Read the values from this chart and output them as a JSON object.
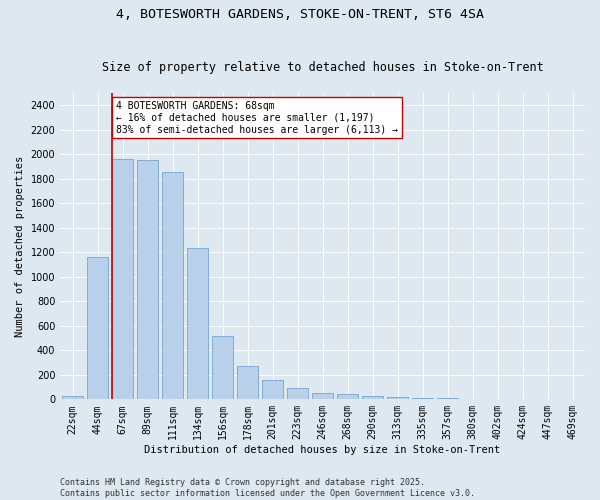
{
  "title_line1": "4, BOTESWORTH GARDENS, STOKE-ON-TRENT, ST6 4SA",
  "title_line2": "Size of property relative to detached houses in Stoke-on-Trent",
  "xlabel": "Distribution of detached houses by size in Stoke-on-Trent",
  "ylabel": "Number of detached properties",
  "categories": [
    "22sqm",
    "44sqm",
    "67sqm",
    "89sqm",
    "111sqm",
    "134sqm",
    "156sqm",
    "178sqm",
    "201sqm",
    "223sqm",
    "246sqm",
    "268sqm",
    "290sqm",
    "313sqm",
    "335sqm",
    "357sqm",
    "380sqm",
    "402sqm",
    "424sqm",
    "447sqm",
    "469sqm"
  ],
  "values": [
    30,
    1160,
    1960,
    1950,
    1850,
    1230,
    515,
    270,
    155,
    90,
    50,
    45,
    25,
    20,
    12,
    8,
    5,
    3,
    2,
    2,
    2
  ],
  "bar_color": "#b8d0ea",
  "bar_edge_color": "#6699cc",
  "highlight_index": 2,
  "highlight_line_color": "#cc0000",
  "annotation_text": "4 BOTESWORTH GARDENS: 68sqm\n← 16% of detached houses are smaller (1,197)\n83% of semi-detached houses are larger (6,113) →",
  "annotation_box_color": "#ffffff",
  "annotation_box_edge": "#cc0000",
  "ylim": [
    0,
    2500
  ],
  "yticks": [
    0,
    200,
    400,
    600,
    800,
    1000,
    1200,
    1400,
    1600,
    1800,
    2000,
    2200,
    2400
  ],
  "background_color": "#dde8f0",
  "grid_color": "#ffffff",
  "footer_line1": "Contains HM Land Registry data © Crown copyright and database right 2025.",
  "footer_line2": "Contains public sector information licensed under the Open Government Licence v3.0.",
  "title_fontsize": 9.5,
  "subtitle_fontsize": 8.5,
  "axis_label_fontsize": 7.5,
  "tick_fontsize": 7,
  "annotation_fontsize": 7,
  "footer_fontsize": 6
}
